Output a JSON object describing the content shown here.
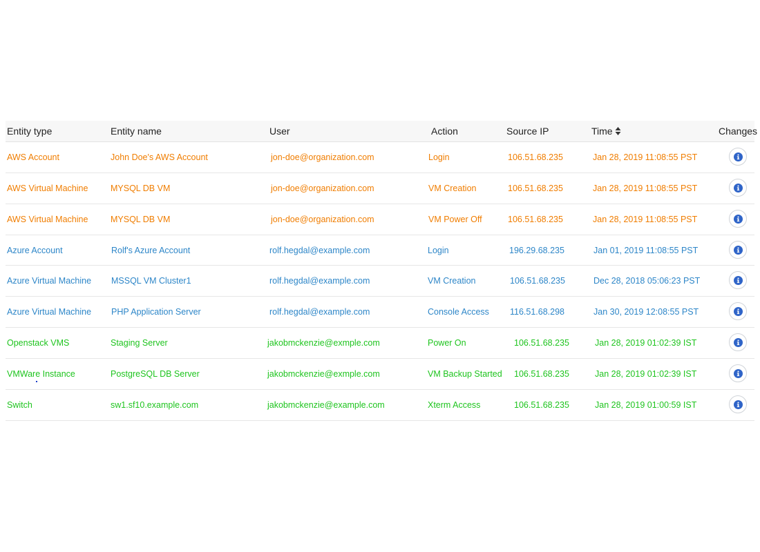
{
  "colors": {
    "aws": "#f07d00",
    "azure": "#2d86c8",
    "onprem": "#1ec41e",
    "info_icon": "#2f64c8"
  },
  "table": {
    "headers": {
      "entity_type": "Entity type",
      "entity_name": "Entity name",
      "user": "User",
      "action": "Action",
      "source_ip": "Source IP",
      "time": "Time",
      "changes": "Changes"
    },
    "time_sort_icon": "sort-icon",
    "changes_icon": "info-icon",
    "rows": [
      {
        "entity_type": "AWS Account",
        "entity_name": "John Doe's AWS Account",
        "user": "jon-doe@organization.com",
        "action": "Login",
        "source_ip": "106.51.68.235",
        "time": "Jan 28, 2019 11:08:55 PST",
        "color": "#f07d00"
      },
      {
        "entity_type": "AWS Virtual Machine",
        "entity_name": "MYSQL DB VM",
        "user": "jon-doe@organization.com",
        "action": "VM Creation",
        "source_ip": "106.51.68.235",
        "time": "Jan 28, 2019 11:08:55 PST",
        "color": "#f07d00"
      },
      {
        "entity_type": "AWS Virtual Machine",
        "entity_name": "MYSQL DB VM",
        "user": "jon-doe@organization.com",
        "action": "VM Power Off",
        "source_ip": "106.51.68.235",
        "time": "Jan 28, 2019 11:08:55 PST",
        "color": "#f07d00"
      },
      {
        "entity_type": "Azure Account",
        "entity_name": "Rolf's Azure Account",
        "user": "rolf.hegdal@example.com",
        "action": "Login",
        "source_ip": "196.29.68.235",
        "time": "Jan 01, 2019 11:08:55 PST",
        "color": "#2d86c8"
      },
      {
        "entity_type": "Azure Virtual Machine",
        "entity_name": "MSSQL VM Cluster1",
        "user": "rolf.hegdal@example.com",
        "action": "VM Creation",
        "source_ip": "106.51.68.235",
        "time": "Dec 28, 2018 05:06:23 PST",
        "color": "#2d86c8"
      },
      {
        "entity_type": "Azure Virtual Machine",
        "entity_name": "PHP Application Server",
        "user": "rolf.hegdal@example.com",
        "action": "Console Access",
        "source_ip": "116.51.68.298",
        "time": "Jan 30, 2019 12:08:55 PST",
        "color": "#2d86c8"
      },
      {
        "entity_type": "Openstack VMS",
        "entity_name": "Staging Server",
        "user": "jakobmckenzie@exmple.com",
        "action": "Power On",
        "source_ip": "106.51.68.235",
        "time": "Jan 28, 2019 01:02:39 IST",
        "color": "#1ec41e"
      },
      {
        "entity_type": "VMWare Instance",
        "entity_name": "PostgreSQL DB Server",
        "user": "jakobmckenzie@exmple.com",
        "action": "VM Backup Started",
        "source_ip": "106.51.68.235",
        "time": "Jan 28, 2019 01:02:39 IST",
        "color": "#1ec41e"
      },
      {
        "entity_type": "Switch",
        "entity_name": "sw1.sf10.example.com",
        "user": "jakobmckenzie@example.com",
        "action": "Xterm Access",
        "source_ip": "106.51.68.235",
        "time": "Jan 28, 2019 01:00:59 IST",
        "color": "#1ec41e"
      }
    ]
  }
}
